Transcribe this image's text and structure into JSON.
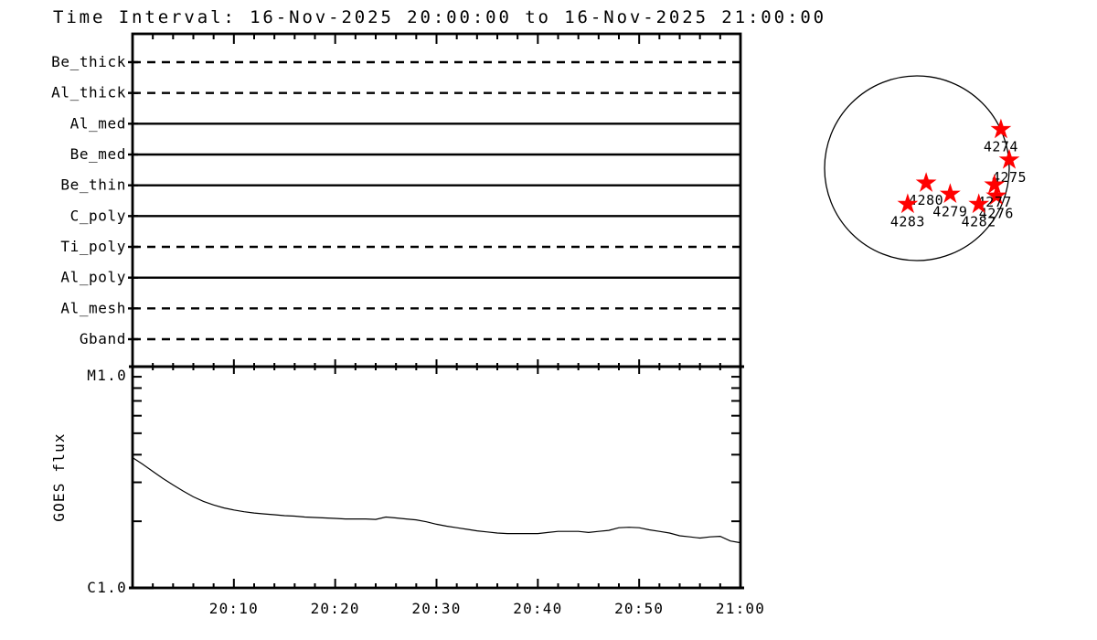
{
  "chart_data": [
    {
      "type": "timeline",
      "name": "xrt_filter_timeline",
      "title": "Time Interval: 16-Nov-2025 20:00:00 to 16-Nov-2025 21:00:00",
      "x_range": [
        "20:00",
        "21:00"
      ],
      "x_major_tick_minutes": 10,
      "x_minor_tick_minutes": 2,
      "grid": "off",
      "filters": [
        {
          "label": "Be_thick",
          "line_style": "dashed"
        },
        {
          "label": "Al_thick",
          "line_style": "dashed"
        },
        {
          "label": "Al_med",
          "line_style": "solid"
        },
        {
          "label": "Be_med",
          "line_style": "solid"
        },
        {
          "label": "Be_thin",
          "line_style": "solid"
        },
        {
          "label": "C_poly",
          "line_style": "solid"
        },
        {
          "label": "Ti_poly",
          "line_style": "dashed"
        },
        {
          "label": "Al_poly",
          "line_style": "solid"
        },
        {
          "label": "Al_mesh",
          "line_style": "dashed"
        },
        {
          "label": "Gband",
          "line_style": "dashed"
        }
      ]
    },
    {
      "type": "line",
      "name": "goes_flux",
      "ylabel": "GOES flux",
      "y_top_label": "M1.0",
      "y_bottom_label": "C1.0",
      "y_scale": "log",
      "y_range_wm2": [
        1e-06,
        1e-05
      ],
      "x_range_minutes": [
        0,
        60
      ],
      "x_tick_labels": [
        "20:10",
        "20:20",
        "20:30",
        "20:40",
        "20:50",
        "21:00"
      ],
      "flux_units": "1e-6 W/m^2 (C-class units), minutes after 20:00 UT",
      "points_min_vs_flux_c": [
        [
          0,
          3.88
        ],
        [
          1,
          3.62
        ],
        [
          2,
          3.36
        ],
        [
          3,
          3.12
        ],
        [
          4,
          2.92
        ],
        [
          5,
          2.74
        ],
        [
          6,
          2.58
        ],
        [
          7,
          2.46
        ],
        [
          8,
          2.37
        ],
        [
          9,
          2.3
        ],
        [
          10,
          2.25
        ],
        [
          11,
          2.21
        ],
        [
          12,
          2.18
        ],
        [
          13,
          2.16
        ],
        [
          14,
          2.14
        ],
        [
          15,
          2.12
        ],
        [
          16,
          2.11
        ],
        [
          17,
          2.09
        ],
        [
          18,
          2.08
        ],
        [
          19,
          2.07
        ],
        [
          20,
          2.06
        ],
        [
          21,
          2.05
        ],
        [
          22,
          2.05
        ],
        [
          23,
          2.05
        ],
        [
          24,
          2.04
        ],
        [
          25,
          2.09
        ],
        [
          26,
          2.07
        ],
        [
          27,
          2.05
        ],
        [
          28,
          2.03
        ],
        [
          29,
          1.99
        ],
        [
          30,
          1.94
        ],
        [
          31,
          1.9
        ],
        [
          32,
          1.87
        ],
        [
          33,
          1.84
        ],
        [
          34,
          1.81
        ],
        [
          35,
          1.79
        ],
        [
          36,
          1.77
        ],
        [
          37,
          1.76
        ],
        [
          38,
          1.76
        ],
        [
          39,
          1.76
        ],
        [
          40,
          1.76
        ],
        [
          41,
          1.78
        ],
        [
          42,
          1.8
        ],
        [
          43,
          1.8
        ],
        [
          44,
          1.8
        ],
        [
          45,
          1.78
        ],
        [
          46,
          1.8
        ],
        [
          47,
          1.82
        ],
        [
          48,
          1.87
        ],
        [
          49,
          1.88
        ],
        [
          50,
          1.87
        ],
        [
          51,
          1.83
        ],
        [
          52,
          1.8
        ],
        [
          53,
          1.77
        ],
        [
          54,
          1.72
        ],
        [
          55,
          1.7
        ],
        [
          56,
          1.68
        ],
        [
          57,
          1.7
        ],
        [
          58,
          1.71
        ],
        [
          59,
          1.63
        ],
        [
          60,
          1.6
        ]
      ]
    },
    {
      "type": "scatter",
      "name": "solar_disk_active_regions",
      "marker": "star",
      "star_color": "#ff0000",
      "coords_units": "fraction of solar radius from disk center, +x west, +y north",
      "regions": [
        {
          "label": "4274",
          "x_rsun": 0.91,
          "y_rsun": 0.42
        },
        {
          "label": "4275",
          "x_rsun": 1.0,
          "y_rsun": 0.09
        },
        {
          "label": "4276",
          "x_rsun": 0.86,
          "y_rsun": -0.3
        },
        {
          "label": "4277",
          "x_rsun": 0.84,
          "y_rsun": -0.18
        },
        {
          "label": "4279",
          "x_rsun": 0.36,
          "y_rsun": -0.28
        },
        {
          "label": "4280",
          "x_rsun": 0.1,
          "y_rsun": -0.16
        },
        {
          "label": "4282",
          "x_rsun": 0.67,
          "y_rsun": -0.39
        },
        {
          "label": "4283",
          "x_rsun": -0.1,
          "y_rsun": -0.39
        }
      ]
    }
  ]
}
